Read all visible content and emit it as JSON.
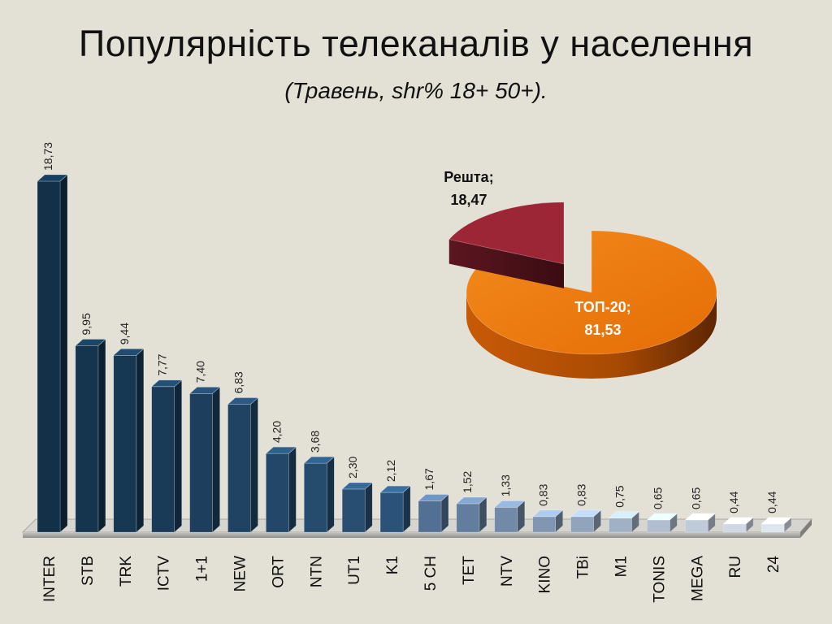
{
  "title": "Популярність телеканалів у населення",
  "subtitle": "(Травень, shr% 18+ 50+).",
  "chart_data": [
    {
      "type": "bar",
      "categories": [
        "INTER",
        "STB",
        "TRK",
        "ICTV",
        "1+1",
        "NEW",
        "ORT",
        "NTN",
        "UT1",
        "K1",
        "5 CH",
        "TET",
        "NTV",
        "KINO",
        "TBi",
        "M1",
        "TONIS",
        "MEGA",
        "RU",
        "24"
      ],
      "values": [
        18.73,
        9.95,
        9.44,
        7.77,
        7.4,
        6.83,
        4.2,
        3.68,
        2.3,
        2.12,
        1.67,
        1.52,
        1.33,
        0.83,
        0.83,
        0.75,
        0.65,
        0.65,
        0.44,
        0.44
      ],
      "value_labels": [
        "18,73",
        "9,95",
        "9,44",
        "7,77",
        "7,40",
        "6,83",
        "4,20",
        "3,68",
        "2,30",
        "2,12",
        "1,67",
        "1,52",
        "1,33",
        "0,83",
        "0,83",
        "0,75",
        "0,65",
        "0,65",
        "0,44",
        "0,44"
      ],
      "ylim": [
        0,
        20
      ],
      "grid": false,
      "colors": {
        "dark": "#123048",
        "light": "#dfe5ee"
      }
    },
    {
      "type": "pie",
      "slices": [
        {
          "label": "ТОП-20;",
          "value_label": "81,53",
          "value": 81.53,
          "color": "#ef7a0c"
        },
        {
          "label": "Решта;",
          "value_label": "18,47",
          "value": 18.47,
          "color": "#9c2636"
        }
      ]
    }
  ]
}
